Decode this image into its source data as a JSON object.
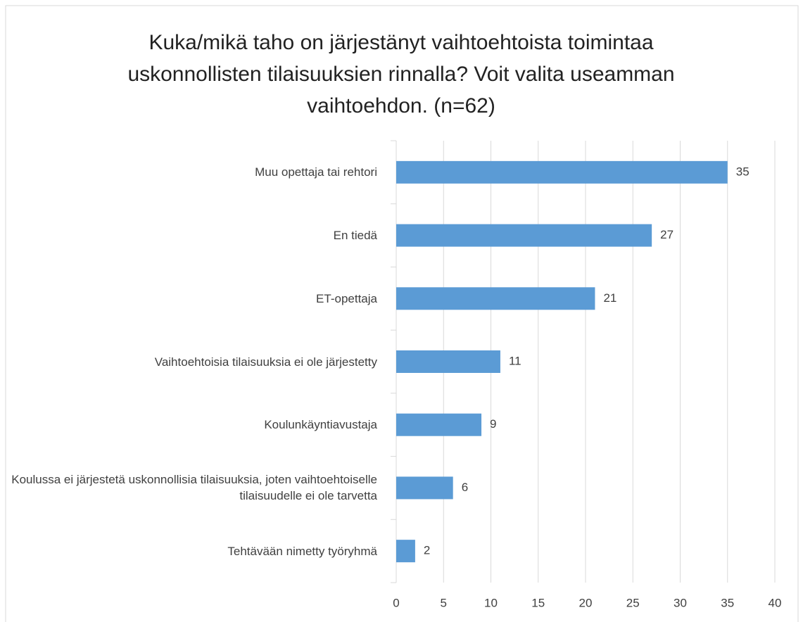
{
  "chart_data": {
    "type": "barh",
    "title": "Kuka/mikä taho on järjestänyt vaihtoehtoista toimintaa uskonnollisten tilaisuuksien rinnalla? Voit valita useamman vaihtoehdon. (n=62)",
    "categories": [
      "Muu opettaja tai rehtori",
      "En tiedä",
      "ET-opettaja",
      "Vaihtoehtoisia tilaisuuksia ei ole järjestetty",
      "Koulunkäyntiavustaja",
      "Koulussa ei järjestetä uskonnollisia tilaisuuksia, joten vaihtoehtoiselle tilaisuudelle ei ole tarvetta",
      "Tehtävään nimetty työryhmä"
    ],
    "values": [
      35,
      27,
      21,
      11,
      9,
      6,
      2
    ],
    "color": "#5b9bd5",
    "xlim": [
      0,
      40
    ],
    "xticks": [
      0,
      5,
      10,
      15,
      20,
      25,
      30,
      35,
      40
    ],
    "grid": true
  }
}
